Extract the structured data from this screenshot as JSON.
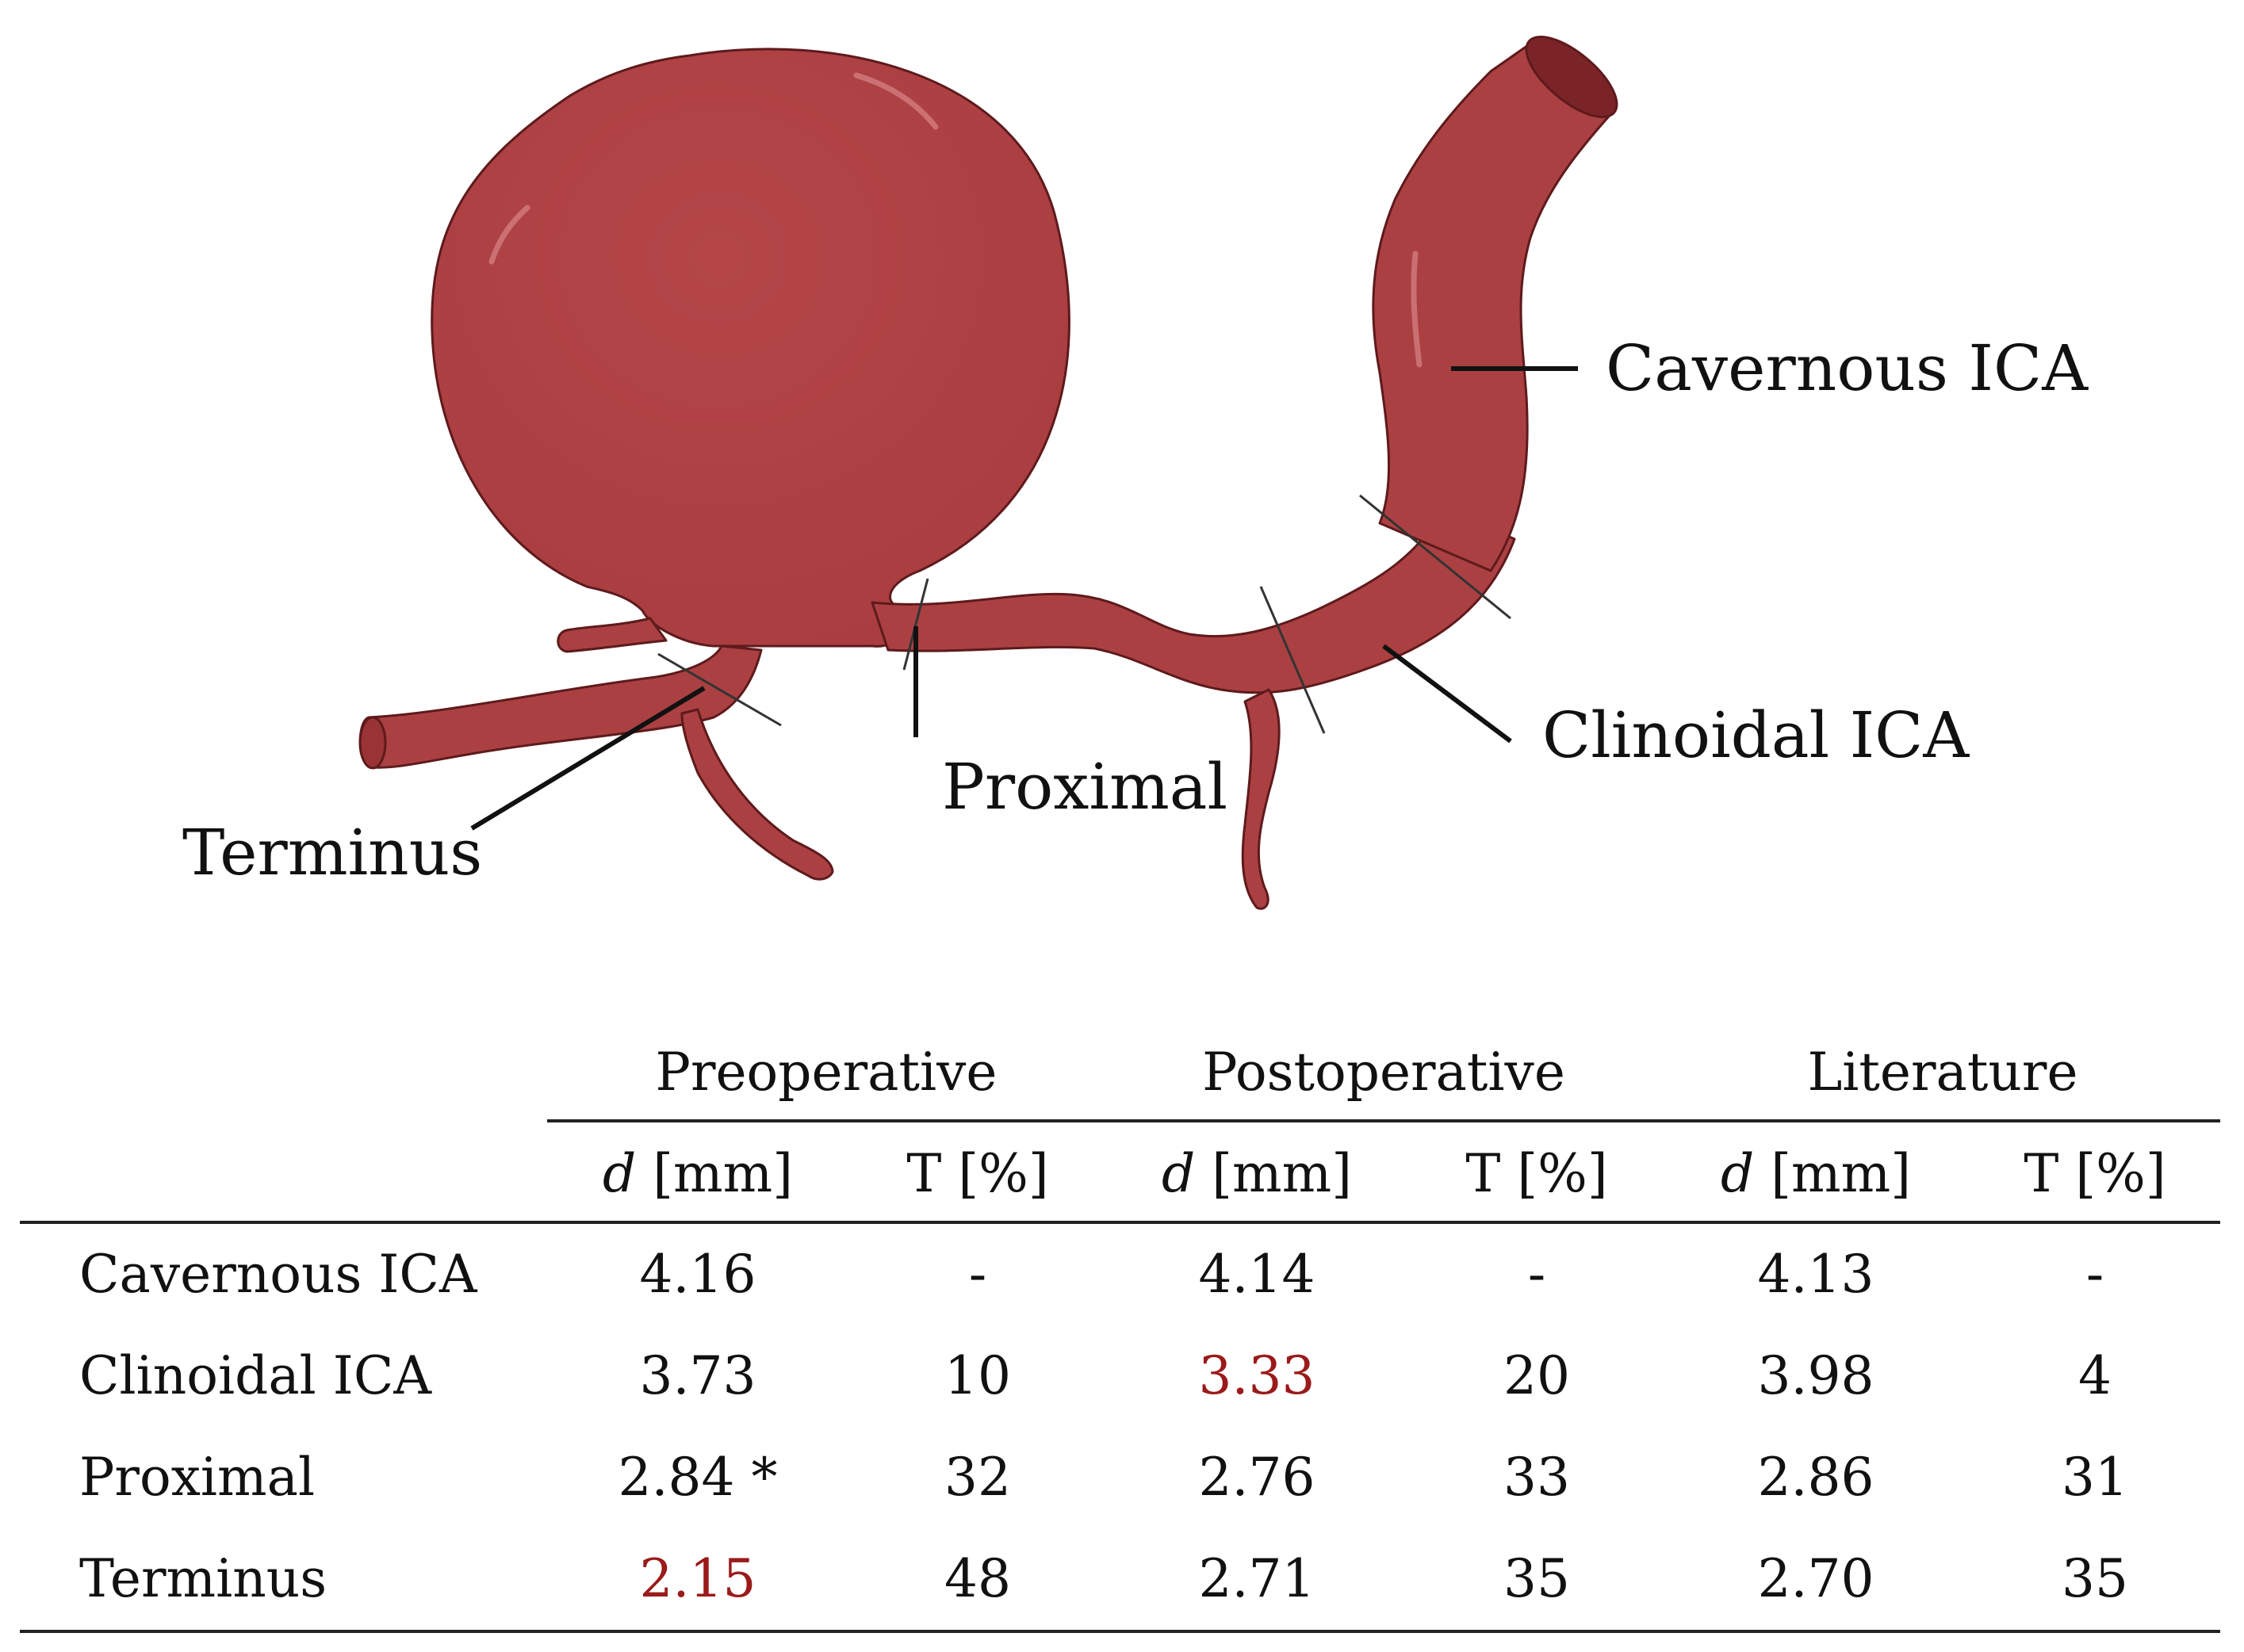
{
  "figure": {
    "labels": {
      "cavernous": "Cavernous ICA",
      "clinoidal": "Clinoidal ICA",
      "proximal": "Proximal",
      "terminus": "Terminus"
    },
    "colors": {
      "vessel": "#ab4042",
      "vessel_dark": "#7a2427",
      "highlight_text": "#9b1a1a"
    }
  },
  "table": {
    "groups": [
      "Preoperative",
      "Postoperative",
      "Literature"
    ],
    "subheaders": {
      "d_symbol": "d",
      "d_unit": " [mm]",
      "t_label": "T [%]"
    },
    "rows": [
      {
        "label": "Cavernous ICA",
        "cells": [
          "4.16",
          "-",
          "4.14",
          "-",
          "4.13",
          "-"
        ]
      },
      {
        "label": "Clinoidal ICA",
        "cells": [
          "3.73",
          "10",
          "3.33",
          "20",
          "3.98",
          "4"
        ]
      },
      {
        "label": "Proximal",
        "cells": [
          "2.84 *",
          "32",
          "2.76",
          "33",
          "2.86",
          "31"
        ]
      },
      {
        "label": "Terminus",
        "cells": [
          "2.15",
          "48",
          "2.71",
          "35",
          "2.70",
          "35"
        ]
      }
    ]
  }
}
